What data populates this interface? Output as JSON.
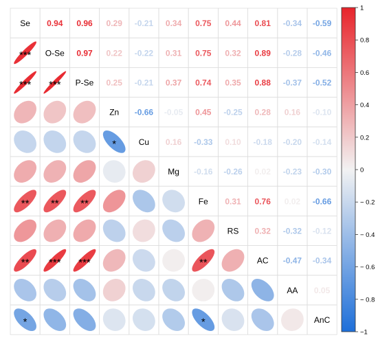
{
  "chart_data": {
    "type": "heatmap",
    "variables": [
      "Se",
      "O-Se",
      "P-Se",
      "Zn",
      "Cu",
      "Mg",
      "Fe",
      "RS",
      "AC",
      "AA",
      "AnC"
    ],
    "correlations": [
      [
        1,
        0.94,
        0.96,
        0.29,
        -0.21,
        0.34,
        0.75,
        0.44,
        0.81,
        -0.34,
        -0.59
      ],
      [
        0.94,
        1,
        0.97,
        0.22,
        -0.22,
        0.31,
        0.75,
        0.32,
        0.89,
        -0.28,
        -0.46
      ],
      [
        0.96,
        0.97,
        1,
        0.25,
        -0.21,
        0.37,
        0.74,
        0.35,
        0.88,
        -0.37,
        -0.52
      ],
      [
        0.29,
        0.22,
        0.25,
        1,
        -0.66,
        -0.05,
        0.45,
        -0.25,
        0.28,
        0.16,
        -0.1
      ],
      [
        -0.21,
        -0.22,
        -0.21,
        -0.66,
        1,
        0.16,
        -0.33,
        0.1,
        -0.18,
        -0.2,
        -0.14
      ],
      [
        0.34,
        0.31,
        0.37,
        -0.05,
        0.16,
        1,
        -0.16,
        -0.26,
        0.02,
        -0.23,
        -0.3
      ],
      [
        0.75,
        0.75,
        0.74,
        0.45,
        -0.33,
        -0.16,
        1,
        0.31,
        0.76,
        0.02,
        -0.66
      ],
      [
        0.44,
        0.32,
        0.35,
        -0.25,
        0.1,
        -0.26,
        0.31,
        1,
        0.32,
        -0.32,
        -0.12
      ],
      [
        0.81,
        0.89,
        0.88,
        0.28,
        -0.18,
        0.02,
        0.76,
        0.32,
        1,
        -0.47,
        -0.34
      ],
      [
        -0.34,
        -0.28,
        -0.37,
        0.16,
        -0.2,
        -0.23,
        0.02,
        -0.32,
        -0.47,
        1,
        0.05
      ],
      [
        -0.59,
        -0.46,
        -0.52,
        -0.1,
        -0.14,
        -0.3,
        -0.66,
        -0.12,
        -0.34,
        0.05,
        1
      ]
    ],
    "significance_marks": [
      {
        "row": "O-Se",
        "col": "Se",
        "mark": "***"
      },
      {
        "row": "P-Se",
        "col": "Se",
        "mark": "***"
      },
      {
        "row": "P-Se",
        "col": "O-Se",
        "mark": "***"
      },
      {
        "row": "Cu",
        "col": "Zn",
        "mark": "*"
      },
      {
        "row": "Fe",
        "col": "Se",
        "mark": "**"
      },
      {
        "row": "Fe",
        "col": "O-Se",
        "mark": "**"
      },
      {
        "row": "Fe",
        "col": "P-Se",
        "mark": "**"
      },
      {
        "row": "AC",
        "col": "Se",
        "mark": "**"
      },
      {
        "row": "AC",
        "col": "O-Se",
        "mark": "***"
      },
      {
        "row": "AC",
        "col": "P-Se",
        "mark": "***"
      },
      {
        "row": "AC",
        "col": "Fe",
        "mark": "**"
      },
      {
        "row": "AnC",
        "col": "Se",
        "mark": "*"
      },
      {
        "row": "AnC",
        "col": "Fe",
        "mark": "*"
      }
    ],
    "colorbar": {
      "min": -1,
      "max": 1,
      "ticks": [
        1,
        0.8,
        0.6,
        0.4,
        0.2,
        0,
        -0.2,
        -0.4,
        -0.6,
        -0.8,
        -1
      ],
      "tick_labels": [
        "1",
        "0.8",
        "0.6",
        "0.4",
        "0.2",
        "0",
        "− 0.2",
        "− 0.4",
        "− 0.6",
        "− 0.8",
        "−1"
      ],
      "colors": {
        "negative": "#1e6fd9",
        "neutral": "#f2f2f2",
        "positive": "#e8242b"
      }
    },
    "upper_triangle": "numbers",
    "lower_triangle": "ellipses"
  }
}
